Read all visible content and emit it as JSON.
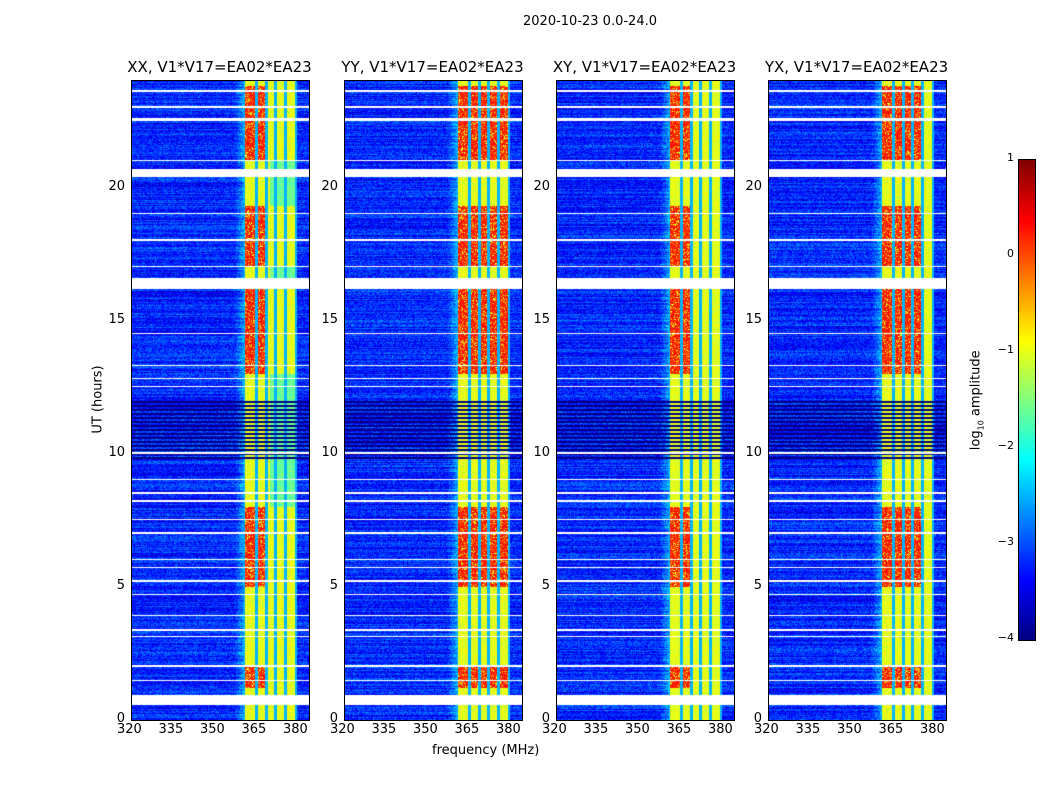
{
  "chart_data": {
    "type": "heatmap",
    "suptitle": "2020-10-23 0.0-24.0",
    "panels": [
      {
        "title": "XX, V1*V17=EA02*EA23"
      },
      {
        "title": "YY, V1*V17=EA02*EA23"
      },
      {
        "title": "XY, V1*V17=EA02*EA23"
      },
      {
        "title": "YX, V1*V17=EA02*EA23"
      }
    ],
    "xlabel": "frequency (MHz)",
    "ylabel": "UT (hours)",
    "xlim": [
      320,
      384
    ],
    "ylim": [
      0,
      24
    ],
    "xticks": [
      "320",
      "335",
      "350",
      "365",
      "380"
    ],
    "xtick_values": [
      320,
      335,
      350,
      365,
      380
    ],
    "yticks": [
      "0",
      "5",
      "10",
      "15",
      "20"
    ],
    "ytick_values": [
      0,
      5,
      10,
      15,
      20
    ],
    "colormap": "jet",
    "colorbar": {
      "label": "log10 amplitude",
      "label_main": "log",
      "label_sub": "10",
      "label_rest": " amplitude",
      "range": [
        -4,
        1
      ],
      "ticks": [
        "1",
        "0",
        "−1",
        "−2",
        "−3",
        "−4"
      ],
      "tick_values": [
        1,
        0,
        -1,
        -2,
        -3,
        -4
      ]
    },
    "background_level": -3.2,
    "band_mhz": [
      360.5,
      379.5
    ],
    "band_level": -1.0,
    "hot_level": 0.2,
    "hot_time_ranges": [
      [
        1.2,
        2.0
      ],
      [
        5.0,
        8.0
      ],
      [
        13.0,
        16.2
      ],
      [
        17.0,
        19.3
      ],
      [
        21.0,
        23.8
      ]
    ],
    "flagged_time_ranges": [
      [
        0.55,
        0.95
      ],
      [
        1.45,
        1.52
      ],
      [
        2.0,
        2.05
      ],
      [
        3.1,
        3.15
      ],
      [
        3.35,
        3.4
      ],
      [
        3.9,
        3.95
      ],
      [
        4.7,
        4.75
      ],
      [
        5.2,
        5.25
      ],
      [
        5.7,
        5.75
      ],
      [
        6.0,
        6.05
      ],
      [
        7.0,
        7.05
      ],
      [
        7.5,
        7.55
      ],
      [
        8.2,
        8.25
      ],
      [
        8.5,
        8.55
      ],
      [
        9.0,
        9.05
      ],
      [
        10.0,
        10.05
      ],
      [
        12.5,
        12.55
      ],
      [
        12.8,
        12.85
      ],
      [
        13.3,
        13.35
      ],
      [
        14.5,
        14.55
      ],
      [
        16.2,
        16.6
      ],
      [
        17.0,
        17.05
      ],
      [
        18.0,
        18.05
      ],
      [
        19.0,
        19.05
      ],
      [
        20.4,
        20.7
      ],
      [
        21.0,
        21.05
      ],
      [
        22.5,
        22.6
      ],
      [
        23.0,
        23.05
      ],
      [
        23.6,
        23.65
      ]
    ],
    "dark_time_range": [
      9.8,
      12.0
    ],
    "channel_edges_mhz": [
      360.5,
      365,
      368.5,
      372,
      375.5,
      379.5
    ]
  }
}
